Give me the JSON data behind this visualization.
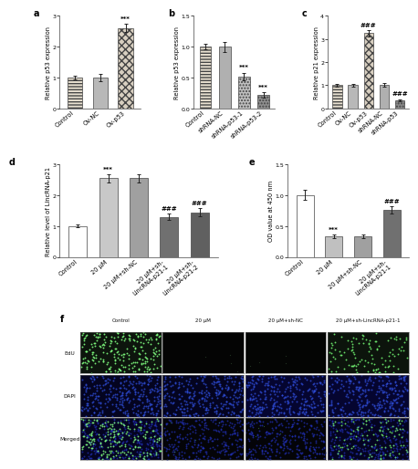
{
  "panel_a": {
    "categories": [
      "Control",
      "Ov-NC",
      "Ov-p53"
    ],
    "values": [
      1.0,
      1.0,
      2.6
    ],
    "errors": [
      0.06,
      0.13,
      0.13
    ],
    "ylabel": "Relative p53 expression",
    "ylim": [
      0,
      3
    ],
    "yticks": [
      0,
      1,
      2,
      3
    ],
    "sig_labels": [
      "",
      "",
      "***"
    ],
    "colors": [
      "#e8e0d0",
      "#b8b8b8",
      "#d8cfc0"
    ],
    "hatches": [
      "-----",
      "",
      "xxxx"
    ]
  },
  "panel_b": {
    "categories": [
      "Control",
      "shRNA-NC",
      "shRNA-p53-1",
      "shRNA-p53-2"
    ],
    "values": [
      1.0,
      1.0,
      0.52,
      0.22
    ],
    "errors": [
      0.05,
      0.08,
      0.06,
      0.04
    ],
    "ylabel": "Relative p53 expression",
    "ylim": [
      0.0,
      1.5
    ],
    "yticks": [
      0.0,
      0.5,
      1.0,
      1.5
    ],
    "sig_labels": [
      "",
      "",
      "***",
      "***"
    ],
    "colors": [
      "#e8e0d0",
      "#b0b0b0",
      "#c0c0c0",
      "#909090"
    ],
    "hatches": [
      "-----",
      "",
      ".....",
      "....."
    ]
  },
  "panel_c": {
    "categories": [
      "Control",
      "Ov-NC",
      "Ov-p53",
      "shRNA-NC",
      "shRNA-p53"
    ],
    "values": [
      1.0,
      1.0,
      3.25,
      1.0,
      0.35
    ],
    "errors": [
      0.06,
      0.07,
      0.13,
      0.08,
      0.05
    ],
    "ylabel": "Relative p21 expression",
    "ylim": [
      0,
      4
    ],
    "yticks": [
      0,
      1,
      2,
      3,
      4
    ],
    "sig_labels": [
      "",
      "",
      "###",
      "",
      "###"
    ],
    "colors": [
      "#e8e0d0",
      "#b8b8b8",
      "#d8cfc0",
      "#b0b0b0",
      "#888888"
    ],
    "hatches": [
      "-----",
      "",
      "xxxx",
      "",
      "....."
    ]
  },
  "panel_d": {
    "categories": [
      "Control",
      "20 μM",
      "20 μM+sh-NC",
      "20 μM+sh-\nLincRNA-p21-1",
      "20 μM+sh-\nLincRNA-p21-2"
    ],
    "values": [
      1.0,
      2.55,
      2.55,
      1.3,
      1.45
    ],
    "errors": [
      0.05,
      0.13,
      0.13,
      0.1,
      0.13
    ],
    "ylabel": "Relative level of LincRNA-p21",
    "ylim": [
      0,
      3
    ],
    "yticks": [
      0,
      1,
      2,
      3
    ],
    "sig_labels": [
      "",
      "***",
      "",
      "###",
      "###"
    ],
    "colors": [
      "#ffffff",
      "#c8c8c8",
      "#a0a0a0",
      "#707070",
      "#606060"
    ],
    "hatches": [
      "",
      "",
      "",
      "",
      ""
    ]
  },
  "panel_e": {
    "categories": [
      "Control",
      "20 μM",
      "20 μM+sh-NC",
      "20 μM+sh-\nLincRNA-p21-1"
    ],
    "values": [
      1.0,
      0.33,
      0.33,
      0.76
    ],
    "errors": [
      0.08,
      0.03,
      0.03,
      0.06
    ],
    "ylabel": "OD value at 450 nm",
    "ylim": [
      0.0,
      1.5
    ],
    "yticks": [
      0.0,
      0.5,
      1.0,
      1.5
    ],
    "sig_labels": [
      "",
      "***",
      "",
      "###"
    ],
    "colors": [
      "#ffffff",
      "#c0c0c0",
      "#a0a0a0",
      "#707070"
    ],
    "hatches": [
      "",
      "",
      "",
      ""
    ]
  },
  "panel_f": {
    "col_labels": [
      "Control",
      "20 μM",
      "20 μM+sh-NC",
      "20 μM+sh-LincRNA-p21-1"
    ],
    "row_labels": [
      "EdU",
      "DAPI",
      "Merged"
    ]
  },
  "figure_bg": "#ffffff",
  "bar_edge_color": "#444444",
  "bar_edge_width": 0.5,
  "font_size_label": 4.8,
  "font_size_tick": 4.5,
  "font_size_panel": 7,
  "font_size_sig": 5.0,
  "error_cap_size": 1.5,
  "error_line_width": 0.7
}
